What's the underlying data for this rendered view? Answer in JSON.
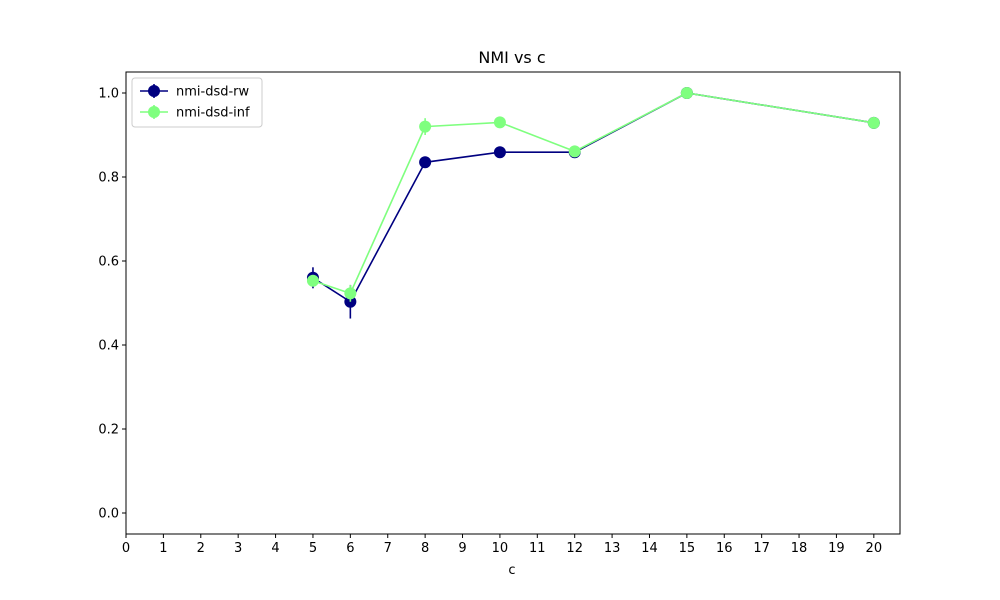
{
  "chart_data": {
    "type": "line",
    "title": "NMI vs c",
    "xlabel": "c",
    "ylabel": "",
    "xlim": [
      0,
      20.7
    ],
    "ylim": [
      -0.05,
      1.05
    ],
    "x_ticks": [
      0,
      1,
      2,
      3,
      4,
      5,
      6,
      7,
      8,
      9,
      10,
      11,
      12,
      13,
      14,
      15,
      16,
      17,
      18,
      19,
      20
    ],
    "y_ticks": [
      0.0,
      0.2,
      0.4,
      0.6,
      0.8,
      1.0
    ],
    "y_tick_labels": [
      "0.0",
      "0.2",
      "0.4",
      "0.6",
      "0.8",
      "1.0"
    ],
    "grid": false,
    "legend_position": "upper-left",
    "series": [
      {
        "name": "nmi-dsd-rw",
        "color": "#000080",
        "marker": "circle",
        "x": [
          5,
          6,
          8,
          10,
          12,
          15,
          20
        ],
        "y": [
          0.56,
          0.503,
          0.835,
          0.859,
          0.859,
          1.0,
          0.929
        ],
        "err": [
          0.025,
          0.04,
          0.008,
          0.005,
          0.005,
          0.0,
          0.002
        ]
      },
      {
        "name": "nmi-dsd-inf",
        "color": "#7FFF7F",
        "marker": "circle",
        "x": [
          5,
          6,
          8,
          10,
          12,
          15,
          20
        ],
        "y": [
          0.553,
          0.523,
          0.92,
          0.93,
          0.861,
          1.0,
          0.929
        ],
        "err": [
          0.012,
          0.02,
          0.02,
          0.005,
          0.006,
          0.0,
          0.002
        ]
      }
    ]
  }
}
